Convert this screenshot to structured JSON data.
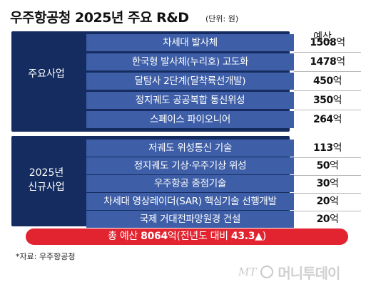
{
  "title": "우주항공청 2025년 주요 R&D",
  "unit": "(단위: 원)",
  "column_header": "예산",
  "groups": [
    {
      "label": "주요사업"
    },
    {
      "label_line1": "2025년",
      "label_line2": "신규사업"
    }
  ],
  "chart_data": {
    "type": "table",
    "columns": [
      "",
      "",
      "예산"
    ],
    "value_unit": "억",
    "rows": [
      {
        "group": "주요사업",
        "name": "차세대 발사체",
        "value": 1508
      },
      {
        "group": "주요사업",
        "name": "한국형 발사체(누리호) 고도화",
        "value": 1478
      },
      {
        "group": "주요사업",
        "name": "달탐사 2단계(달착륙선개발)",
        "value": 450
      },
      {
        "group": "주요사업",
        "name": "정지궤도 공공복합 통신위성",
        "value": 350
      },
      {
        "group": "주요사업",
        "name": "스페이스 파이오니어",
        "value": 264
      },
      {
        "group": "2025년 신규사업",
        "name": "저궤도 위성통신 기술",
        "value": 113
      },
      {
        "group": "2025년 신규사업",
        "name": "정지궤도 기상·우주기상 위성",
        "value": 50
      },
      {
        "group": "2025년 신규사업",
        "name": "우주항공 중점기술",
        "value": 30
      },
      {
        "group": "2025년 신규사업",
        "name": "차세대 영상레이더(SAR) 핵심기술 선행개발",
        "value": 20
      },
      {
        "group": "2025년 신규사업",
        "name": "국제 거대전파망원경 건설",
        "value": 20
      }
    ],
    "total": {
      "prefix": "총 예산 ",
      "value": "8064",
      "unit": "억",
      "comparison": "(전년도 대비 ",
      "change": "43.3▲",
      "close": ")"
    }
  },
  "source": "*자료: 우주항공청",
  "logo": {
    "mark": "MT",
    "name": "머니투데이"
  },
  "colors": {
    "group_bg": "#142c5f",
    "cell_bg": "#3e5fa8",
    "total_bg": "#e22430",
    "divider": "#b7b7b7"
  }
}
